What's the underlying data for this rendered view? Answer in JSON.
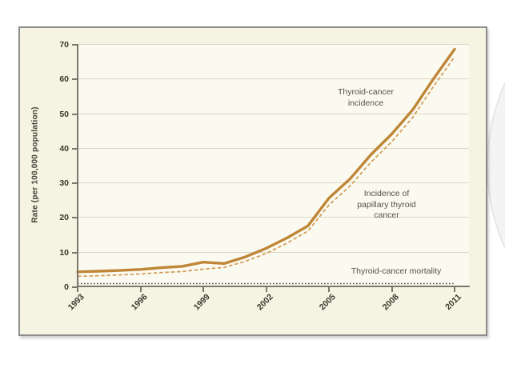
{
  "chart_data": {
    "type": "line",
    "title": "",
    "xlabel": "",
    "ylabel": "Rate (per 100,000 population)",
    "xlim": [
      1993,
      2011
    ],
    "ylim": [
      0,
      70
    ],
    "grid": "horizontal",
    "legend_position": "inline-annotations",
    "x_tick_labels": [
      "1993",
      "1996",
      "1999",
      "2002",
      "2005",
      "2008",
      "2011"
    ],
    "y_tick_labels": [
      "0",
      "10",
      "20",
      "30",
      "40",
      "50",
      "60",
      "70"
    ],
    "x": [
      1993,
      1994,
      1995,
      1996,
      1997,
      1998,
      1999,
      2000,
      2001,
      2002,
      2003,
      2004,
      2005,
      2006,
      2007,
      2008,
      2009,
      2010,
      2011
    ],
    "series": [
      {
        "name": "Thyroid-cancer incidence",
        "style": "solid",
        "color": "#bf8637",
        "width": 3.4,
        "values": [
          4.2,
          4.4,
          4.6,
          4.9,
          5.4,
          5.8,
          7.0,
          6.6,
          8.5,
          11.0,
          14.0,
          17.5,
          25.5,
          31.0,
          38.0,
          44.0,
          51.0,
          60.0,
          68.5
        ]
      },
      {
        "name": "Incidence of papillary thyroid cancer",
        "style": "dashed",
        "color": "#d09a55",
        "width": 1.7,
        "values": [
          2.9,
          3.1,
          3.3,
          3.6,
          4.0,
          4.3,
          5.0,
          5.5,
          7.2,
          9.5,
          12.5,
          16.0,
          23.5,
          29.0,
          35.8,
          41.8,
          48.8,
          57.8,
          66.3
        ]
      },
      {
        "name": "Thyroid-cancer mortality",
        "style": "dotted",
        "color": "#4e4d45",
        "width": 1.6,
        "values": [
          0.8,
          0.8,
          0.8,
          0.8,
          0.8,
          0.8,
          0.8,
          0.8,
          0.8,
          0.8,
          0.8,
          0.8,
          0.8,
          0.8,
          0.8,
          0.8,
          0.8,
          0.8,
          0.8
        ]
      }
    ],
    "annotations": [
      {
        "text": "Thyroid-cancer\nincidence",
        "series": "Thyroid-cancer incidence"
      },
      {
        "text": "Incidence of\npapillary thyroid\ncancer",
        "series": "Incidence of papillary thyroid cancer"
      },
      {
        "text": "Thyroid-cancer mortality",
        "series": "Thyroid-cancer mortality"
      }
    ],
    "colors": {
      "card_background": "#f5f3e1",
      "plot_background": "#fbfaf0",
      "gridline": "#dbd6c2",
      "axis": "#7b786b",
      "text": "#3a3830"
    }
  }
}
